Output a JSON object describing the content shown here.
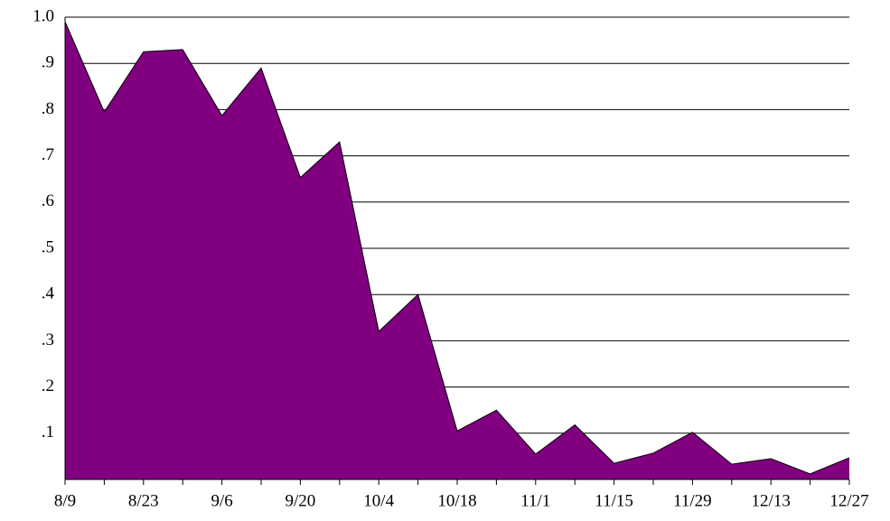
{
  "chart_data": {
    "type": "area",
    "color": "#800080",
    "categories": [
      "8/9",
      null,
      "8/23",
      null,
      "9/6",
      null,
      "9/20",
      null,
      "10/4",
      null,
      "10/18",
      null,
      "11/1",
      null,
      "11/15",
      null,
      "11/29",
      null,
      "12/13",
      null,
      "12/27"
    ],
    "values": [
      0.99,
      0.795,
      0.925,
      0.93,
      0.787,
      0.89,
      0.653,
      0.73,
      0.32,
      0.4,
      0.105,
      0.15,
      0.055,
      0.118,
      0.035,
      0.057,
      0.102,
      0.033,
      0.045,
      0.012,
      0.047
    ],
    "ylim": [
      0,
      1
    ],
    "yticks": [
      {
        "value": 0.1,
        "label": ".1"
      },
      {
        "value": 0.2,
        "label": ".2"
      },
      {
        "value": 0.3,
        "label": ".3"
      },
      {
        "value": 0.4,
        "label": ".4"
      },
      {
        "value": 0.5,
        "label": ".5"
      },
      {
        "value": 0.6,
        "label": ".6"
      },
      {
        "value": 0.7,
        "label": ".7"
      },
      {
        "value": 0.8,
        "label": ".8"
      },
      {
        "value": 0.9,
        "label": ".9"
      },
      {
        "value": 1.0,
        "label": "1.0"
      }
    ],
    "grid": true
  }
}
